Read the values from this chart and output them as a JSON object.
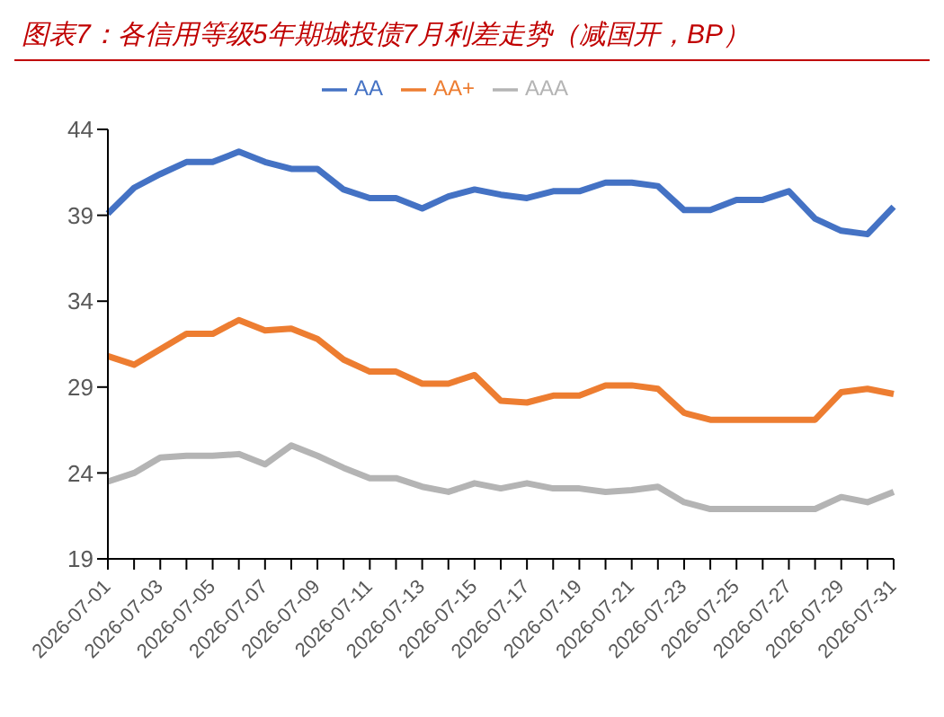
{
  "chart_data": {
    "type": "line",
    "title": "图表7：各信用等级5年期城投债7月利差走势（减国开，BP）",
    "categories": [
      "2026-07-01",
      null,
      "2026-07-03",
      null,
      "2026-07-05",
      null,
      "2026-07-07",
      null,
      "2026-07-09",
      null,
      "2026-07-11",
      null,
      "2026-07-13",
      null,
      "2026-07-15",
      null,
      "2026-07-17",
      null,
      "2026-07-19",
      null,
      "2026-07-21",
      null,
      "2026-07-23",
      null,
      "2026-07-25",
      null,
      "2026-07-27",
      null,
      "2026-07-29",
      null,
      "2026-07-31"
    ],
    "series": [
      {
        "name": "AA",
        "color": "#4472c4",
        "values": [
          39.1,
          40.6,
          41.4,
          42.1,
          42.1,
          42.7,
          42.1,
          41.7,
          41.7,
          40.5,
          40.0,
          40.0,
          39.4,
          40.1,
          40.5,
          40.2,
          40.0,
          40.4,
          40.4,
          40.9,
          40.9,
          40.7,
          39.3,
          39.3,
          39.9,
          39.9,
          40.4,
          38.8,
          38.1,
          37.9,
          39.5
        ]
      },
      {
        "name": "AA+",
        "color": "#ed7d31",
        "values": [
          30.8,
          30.3,
          31.2,
          32.1,
          32.1,
          32.9,
          32.3,
          32.4,
          31.8,
          30.6,
          29.9,
          29.9,
          29.2,
          29.2,
          29.7,
          28.2,
          28.1,
          28.5,
          28.5,
          29.1,
          29.1,
          28.9,
          27.5,
          27.1,
          27.1,
          27.1,
          27.1,
          27.1,
          28.7,
          28.9,
          28.6
        ]
      },
      {
        "name": "AAA",
        "color": "#b4b4b4",
        "values": [
          23.5,
          24.0,
          24.9,
          25.0,
          25.0,
          25.1,
          24.5,
          25.6,
          25.0,
          24.3,
          23.7,
          23.7,
          23.2,
          22.9,
          23.4,
          23.1,
          23.4,
          23.1,
          23.1,
          22.9,
          23.0,
          23.2,
          22.3,
          21.9,
          21.9,
          21.9,
          21.9,
          21.9,
          22.6,
          22.3,
          22.9
        ]
      }
    ],
    "ylim": [
      19,
      44
    ],
    "yticks": [
      19,
      24,
      29,
      34,
      39,
      44
    ],
    "grid": false,
    "legend": "top",
    "marker": "none",
    "line_style": "solid"
  }
}
